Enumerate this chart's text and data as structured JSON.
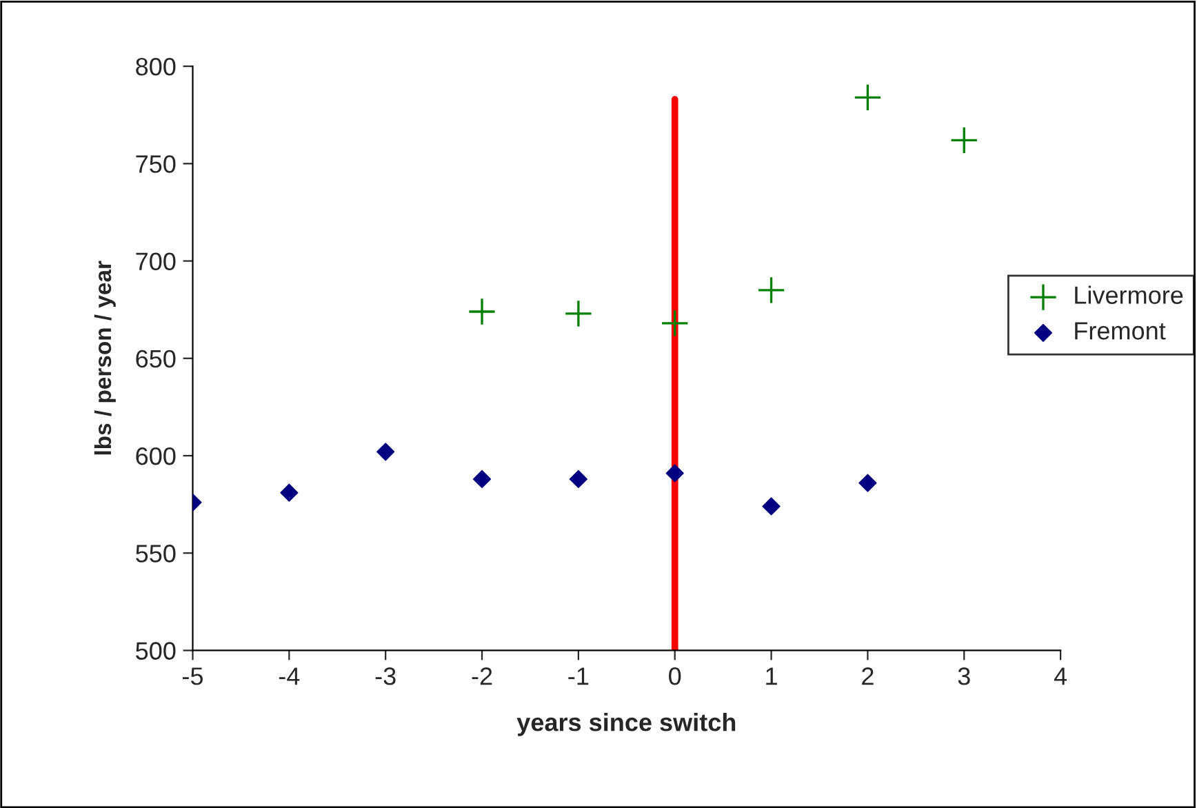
{
  "chart_data": {
    "type": "scatter",
    "xlabel": "years since switch",
    "ylabel": "lbs / person / year",
    "xlim": [
      -5,
      4
    ],
    "xticks": [
      -5,
      -4,
      -3,
      -2,
      -1,
      0,
      1,
      2,
      3,
      4
    ],
    "ylim": [
      500,
      800
    ],
    "yticks": [
      500,
      550,
      600,
      650,
      700,
      750,
      800
    ],
    "grid": false,
    "legend": "right",
    "series": [
      {
        "name": "Livermore",
        "color": "#008000",
        "marker": "cross",
        "x": [
          -2,
          -1,
          0,
          1,
          2,
          3
        ],
        "values": [
          674,
          673,
          668,
          685,
          784,
          762
        ]
      },
      {
        "name": "Fremont",
        "color": "#000080",
        "marker": "diamond",
        "x": [
          -5,
          -4,
          -3,
          -2,
          -1,
          0,
          1,
          2
        ],
        "values": [
          576,
          581,
          602,
          588,
          588,
          591,
          574,
          586
        ]
      },
      {
        "type": "line",
        "color": "#ff0000",
        "marker": "none",
        "x": [
          0,
          0
        ],
        "values": [
          500,
          783
        ]
      }
    ]
  }
}
